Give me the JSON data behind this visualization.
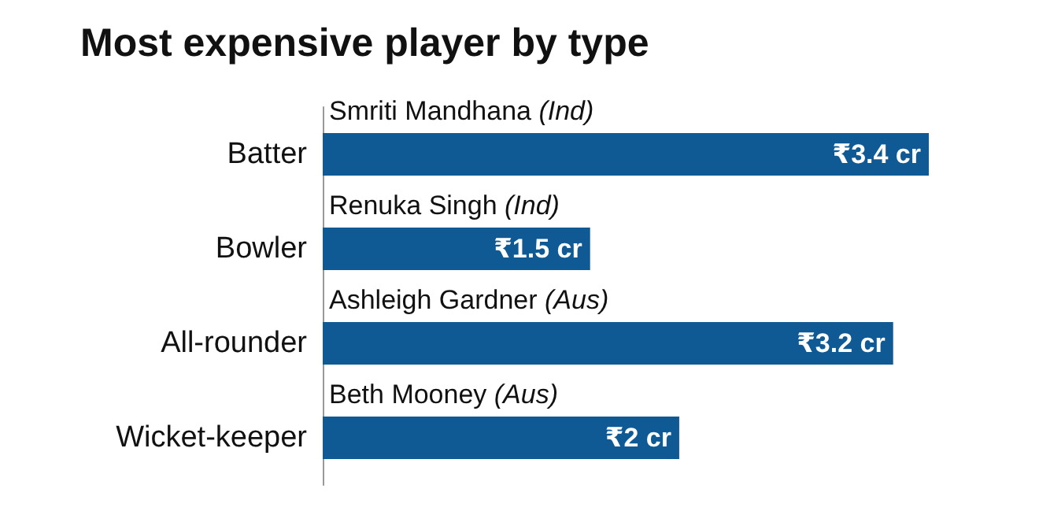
{
  "chart_data": {
    "type": "bar",
    "orientation": "horizontal",
    "title": "Most expensive player by type",
    "categories": [
      "Batter",
      "Bowler",
      "All-rounder",
      "Wicket-keeper"
    ],
    "values": [
      3.4,
      1.5,
      3.2,
      2
    ],
    "value_labels": [
      "₹3.4 cr",
      "₹1.5 cr",
      "₹3.2 cr",
      "₹2 cr"
    ],
    "color": "#0f5a95",
    "tick_labels": "y",
    "grid": false,
    "annotations": [
      "Smriti Mandhana (Ind)",
      "Renuka Singh (Ind)",
      "Ashleigh Gardner (Aus)",
      "Beth Mooney (Aus)"
    ]
  }
}
